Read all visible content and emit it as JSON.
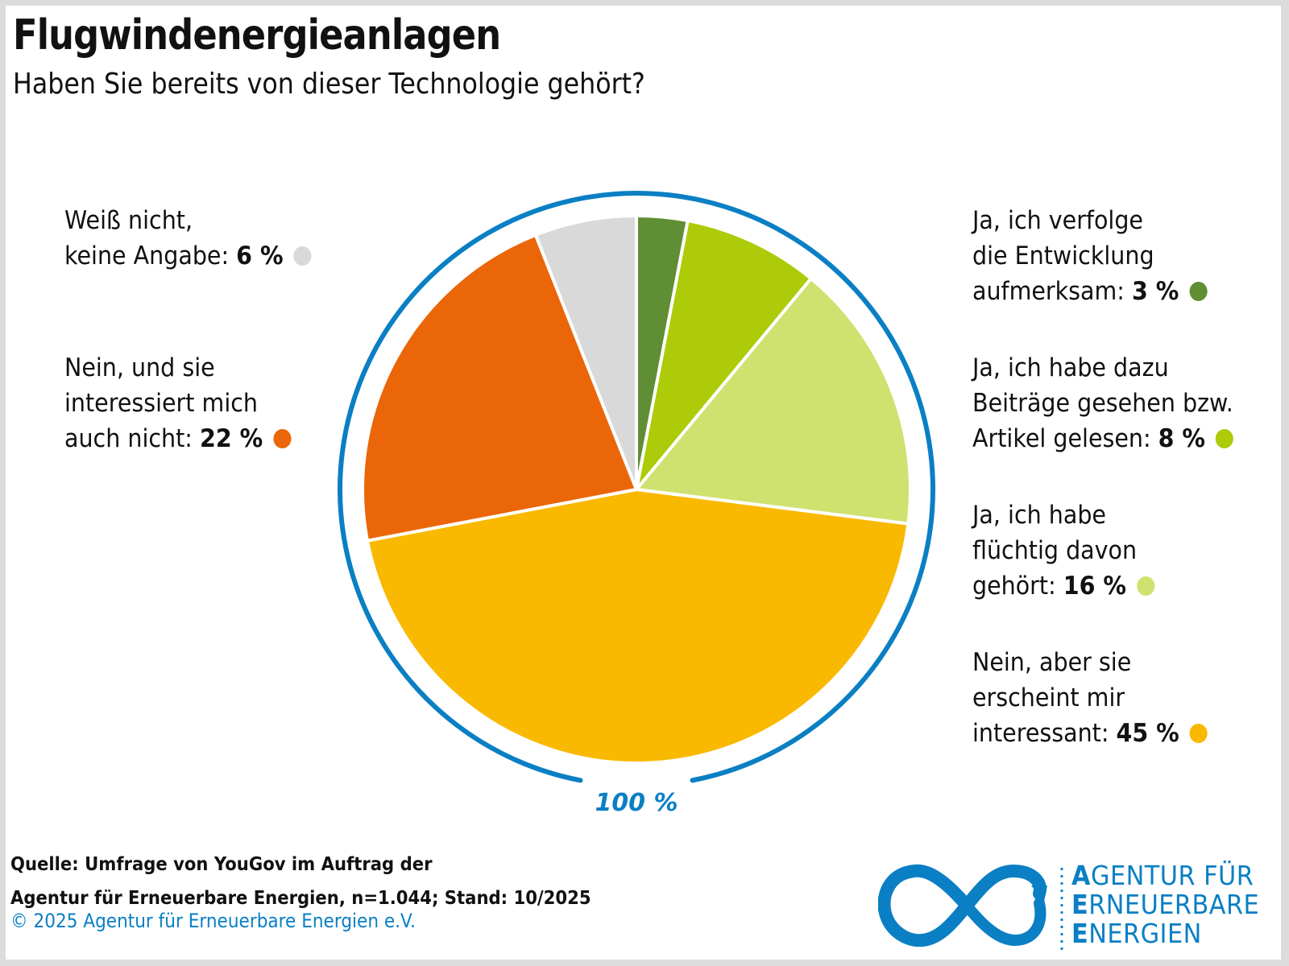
{
  "header": {
    "title": "Flugwindenergieanlagen",
    "subtitle": "Haben Sie bereits von dieser Technologie gehört?"
  },
  "chart_data": {
    "type": "pie",
    "title": "Flugwindenergieanlagen",
    "subtitle": "Haben Sie bereits von dieser Technologie gehört?",
    "unit": "%",
    "total_label": "100 %",
    "start_angle": "12 o'clock, clockwise",
    "slices": [
      {
        "label_lines": [
          "Ja, ich verfolge",
          "die Entwicklung",
          "aufmerksam:"
        ],
        "value": 3,
        "value_label": "3 %",
        "color": "#5f8e34"
      },
      {
        "label_lines": [
          "Ja, ich habe dazu",
          "Beiträge gesehen bzw.",
          "Artikel gelesen:"
        ],
        "value": 8,
        "value_label": "8 %",
        "color": "#adcb08"
      },
      {
        "label_lines": [
          "Ja, ich habe",
          "flüchtig davon",
          "gehört:"
        ],
        "value": 16,
        "value_label": "16 %",
        "color": "#cfe16f"
      },
      {
        "label_lines": [
          "Nein, aber sie",
          "erscheint mir",
          "interessant:"
        ],
        "value": 45,
        "value_label": "45 %",
        "color": "#f9b900"
      },
      {
        "label_lines": [
          "Nein, und sie",
          "interessiert mich",
          "auch nicht:"
        ],
        "value": 22,
        "value_label": "22 %",
        "color": "#eb6608"
      },
      {
        "label_lines": [
          "Weiß nicht,",
          "keine Angabe:"
        ],
        "value": 6,
        "value_label": "6 %",
        "color": "#d9d9d9"
      }
    ],
    "ring_color": "#0a7fc4",
    "legend": "labels placed beside the pie, left and right"
  },
  "footer": {
    "source_line1": "Quelle: Umfrage von YouGov im Auftrag der",
    "source_line2": "Agentur für Erneuerbare Energien, n=1.044; Stand: 10/2025",
    "copyright": "© 2025 Agentur für Erneuerbare Energien e.V."
  },
  "logo": {
    "line1_initial": "A",
    "line1_rest": "GENTUR FÜR",
    "line2_initial": "E",
    "line2_rest": "RNEUERBARE",
    "line3_initial": "E",
    "line3_rest": "NERGIEN",
    "color": "#0a7fc4"
  }
}
